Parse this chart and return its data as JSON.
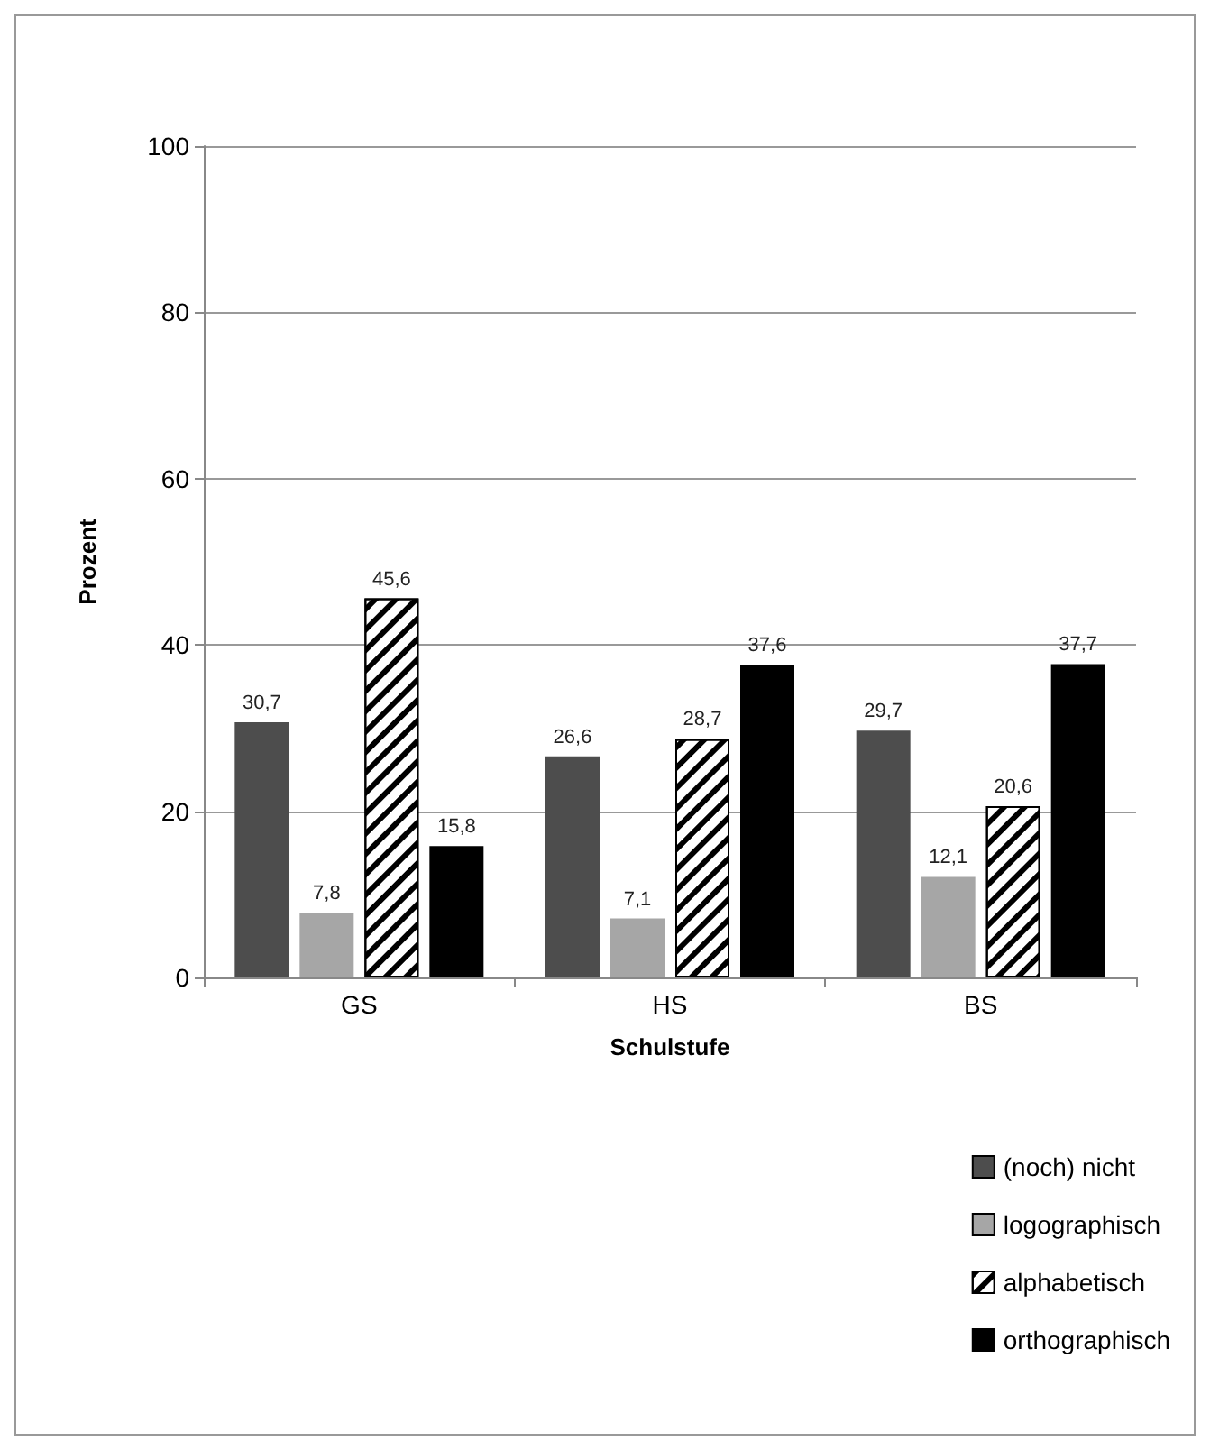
{
  "chart_data": {
    "type": "bar",
    "xlabel": "Schulstufe",
    "ylabel": "Prozent",
    "categories": [
      "GS",
      "HS",
      "BS"
    ],
    "series": [
      {
        "name": "(noch) nicht",
        "color": "#4d4d4d",
        "values": [
          30.7,
          26.6,
          29.7
        ],
        "value_labels": [
          "30,7",
          "26,6",
          "29,7"
        ]
      },
      {
        "name": "logographisch",
        "color": "#a6a6a6",
        "values": [
          7.8,
          7.1,
          12.1
        ],
        "value_labels": [
          "7,8",
          "7,1",
          "12,1"
        ]
      },
      {
        "name": "alphabetisch",
        "color": "#ffffff",
        "values": [
          45.6,
          28.7,
          20.6
        ],
        "value_labels": [
          "45,6",
          "28,7",
          "20,6"
        ]
      },
      {
        "name": "orthographisch",
        "color": "#000000",
        "values": [
          15.8,
          37.6,
          37.7
        ],
        "value_labels": [
          "15,8",
          "37,6",
          "37,7"
        ]
      }
    ],
    "ylim": [
      0,
      100
    ],
    "yticks": [
      0,
      20,
      40,
      60,
      80,
      100
    ],
    "grid": "y",
    "legend": "bottom right"
  }
}
